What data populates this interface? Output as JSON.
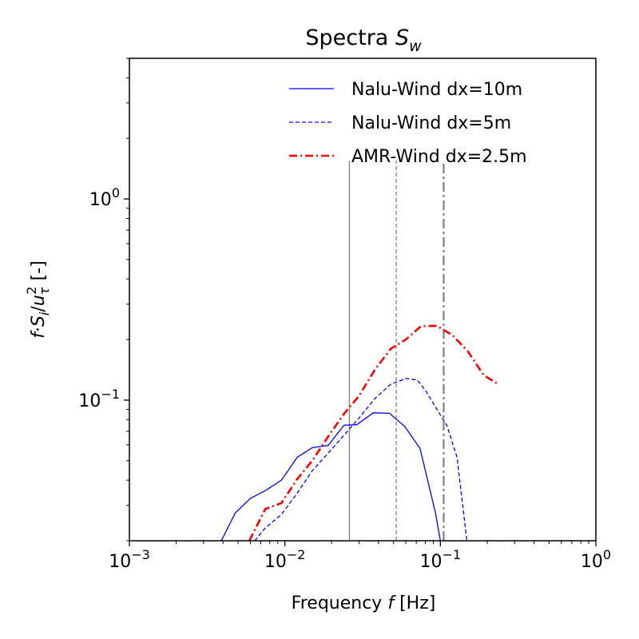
{
  "chart_data": {
    "type": "line",
    "title": "Spectra S_w",
    "title_parts": {
      "main": "Spectra ",
      "sym": "S",
      "sub": "w"
    },
    "xlabel": "Frequency f [Hz]",
    "xlabel_parts": {
      "pre": "Frequency ",
      "sym": "f",
      "post": " [Hz]"
    },
    "ylabel": "f·S_i/u_τ^2 [-]",
    "ylabel_parts": {
      "f": "f",
      "dot": "·",
      "S": "S",
      "i": "i",
      "slash": "/",
      "u": "u",
      "tau": "τ",
      "two": "2",
      "unit": " [-]"
    },
    "xscale": "log",
    "yscale": "log",
    "xlim": [
      0.001,
      1
    ],
    "ylim": [
      0.02,
      5
    ],
    "x_tick_labels": [
      {
        "base": "10",
        "exp": "−3"
      },
      {
        "base": "10",
        "exp": "−2"
      },
      {
        "base": "10",
        "exp": "−1"
      },
      {
        "base": "10",
        "exp": "0"
      }
    ],
    "y_tick_labels": [
      {
        "base": "10",
        "exp": "−1"
      },
      {
        "base": "10",
        "exp": "0"
      }
    ],
    "grid": false,
    "legend_position": "top-right",
    "series": [
      {
        "name": "Nalu-Wind dx=10m",
        "color": "#0000ff",
        "style": "solid",
        "x": [
          0.0039,
          0.0048,
          0.006,
          0.0075,
          0.0095,
          0.012,
          0.015,
          0.019,
          0.024,
          0.029,
          0.037,
          0.047,
          0.059,
          0.074,
          0.093,
          0.1
        ],
        "y": [
          0.02,
          0.0275,
          0.0325,
          0.0355,
          0.04,
          0.052,
          0.058,
          0.0595,
          0.075,
          0.0755,
          0.0865,
          0.086,
          0.074,
          0.0575,
          0.0275,
          0.02
        ]
      },
      {
        "name": "Nalu-Wind dx=5m",
        "color": "#0000ff",
        "style": "dashed",
        "x": [
          0.0064,
          0.0075,
          0.0095,
          0.012,
          0.015,
          0.019,
          0.024,
          0.03,
          0.038,
          0.048,
          0.06,
          0.071,
          0.08,
          0.095,
          0.11,
          0.128,
          0.148
        ],
        "y": [
          0.02,
          0.0232,
          0.027,
          0.0345,
          0.0445,
          0.0545,
          0.067,
          0.0815,
          0.102,
          0.12,
          0.128,
          0.126,
          0.112,
          0.09,
          0.075,
          0.052,
          0.02
        ]
      },
      {
        "name": "AMR-Wind dx=2.5m",
        "color": "#ff0000",
        "style": "dashdot",
        "x": [
          0.0059,
          0.0075,
          0.0095,
          0.012,
          0.015,
          0.019,
          0.024,
          0.03,
          0.038,
          0.048,
          0.06,
          0.075,
          0.095,
          0.12,
          0.15,
          0.19,
          0.235
        ],
        "y": [
          0.02,
          0.0288,
          0.0308,
          0.0405,
          0.05,
          0.066,
          0.0855,
          0.105,
          0.142,
          0.18,
          0.2,
          0.233,
          0.234,
          0.21,
          0.175,
          0.133,
          0.12
        ]
      }
    ],
    "vertical_lines": [
      {
        "x": 0.026,
        "color": "#808080",
        "style": "solid"
      },
      {
        "x": 0.052,
        "color": "#808080",
        "style": "dashed"
      },
      {
        "x": 0.105,
        "color": "#808080",
        "style": "dashdot"
      }
    ],
    "vertical_lines_ymax": 1.55
  }
}
